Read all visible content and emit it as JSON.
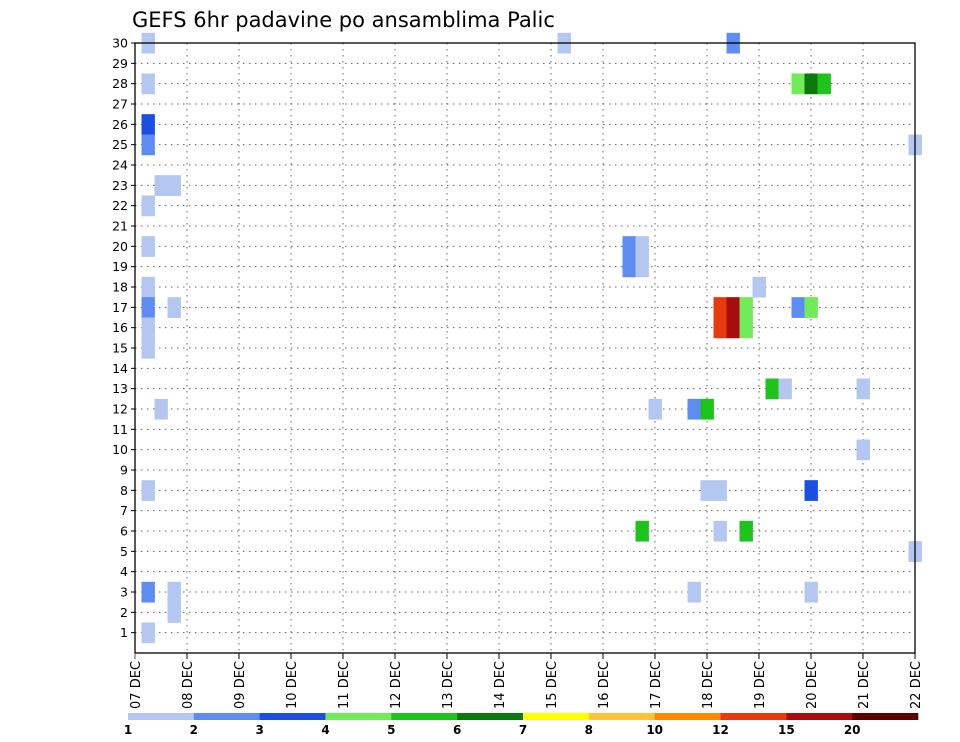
{
  "chart_data": {
    "type": "heatmap",
    "title": "GEFS 6hr padavine po ansamblima Palic",
    "x_labels": [
      "07 DEC",
      "08 DEC",
      "09 DEC",
      "10 DEC",
      "11 DEC",
      "12 DEC",
      "13 DEC",
      "14 DEC",
      "15 DEC",
      "16 DEC",
      "17 DEC",
      "18 DEC",
      "19 DEC",
      "20 DEC",
      "21 DEC",
      "22 DEC"
    ],
    "y_labels": [
      "1",
      "2",
      "3",
      "4",
      "5",
      "6",
      "7",
      "8",
      "9",
      "10",
      "11",
      "12",
      "13",
      "14",
      "15",
      "16",
      "17",
      "18",
      "19",
      "20",
      "21",
      "22",
      "23",
      "24",
      "25",
      "26",
      "27",
      "28",
      "29",
      "30"
    ],
    "x_range_days": [
      0,
      15
    ],
    "y_range": [
      0,
      30
    ],
    "colorbar": {
      "labels": [
        "1",
        "2",
        "3",
        "4",
        "5",
        "6",
        "7",
        "8",
        "10",
        "12",
        "15",
        "20"
      ],
      "colors": [
        "#b4c7f0",
        "#5f8cf0",
        "#1c4fe0",
        "#73ea5a",
        "#1ec31e",
        "#0a780a",
        "#ffff00",
        "#ffc23a",
        "#ff8a00",
        "#e83a10",
        "#a80d0d",
        "#5c0000"
      ]
    },
    "cells": [
      {
        "day": 0.25,
        "member": 30,
        "color": "#b4c7f0"
      },
      {
        "day": 8.25,
        "member": 30,
        "color": "#b4c7f0"
      },
      {
        "day": 11.5,
        "member": 30,
        "color": "#5f8cf0"
      },
      {
        "day": 0.25,
        "member": 28,
        "color": "#b4c7f0"
      },
      {
        "day": 12.75,
        "member": 28,
        "color": "#73ea5a"
      },
      {
        "day": 13.0,
        "member": 28,
        "color": "#0a780a"
      },
      {
        "day": 13.25,
        "member": 28,
        "color": "#1ec31e"
      },
      {
        "day": 0.25,
        "member": 26,
        "color": "#1c4fe0"
      },
      {
        "day": 0.25,
        "member": 25,
        "color": "#5f8cf0"
      },
      {
        "day": 15.0,
        "member": 25,
        "color": "#b4c7f0"
      },
      {
        "day": 0.5,
        "member": 23,
        "color": "#b4c7f0"
      },
      {
        "day": 0.75,
        "member": 23,
        "color": "#b4c7f0"
      },
      {
        "day": 0.25,
        "member": 22,
        "color": "#b4c7f0"
      },
      {
        "day": 0.25,
        "member": 20,
        "color": "#b4c7f0"
      },
      {
        "day": 9.5,
        "member": 20,
        "color": "#5f8cf0"
      },
      {
        "day": 9.75,
        "member": 20,
        "color": "#b4c7f0"
      },
      {
        "day": 9.5,
        "member": 19,
        "color": "#5f8cf0"
      },
      {
        "day": 9.75,
        "member": 19,
        "color": "#b4c7f0"
      },
      {
        "day": 0.25,
        "member": 18,
        "color": "#b4c7f0"
      },
      {
        "day": 12.0,
        "member": 18,
        "color": "#b4c7f0"
      },
      {
        "day": 0.25,
        "member": 17,
        "color": "#5f8cf0"
      },
      {
        "day": 0.75,
        "member": 17,
        "color": "#b4c7f0"
      },
      {
        "day": 11.25,
        "member": 17,
        "color": "#e83a10"
      },
      {
        "day": 11.5,
        "member": 17,
        "color": "#a80d0d"
      },
      {
        "day": 11.75,
        "member": 17,
        "color": "#73ea5a"
      },
      {
        "day": 12.75,
        "member": 17,
        "color": "#5f8cf0"
      },
      {
        "day": 13.0,
        "member": 17,
        "color": "#73ea5a"
      },
      {
        "day": 0.25,
        "member": 16,
        "color": "#b4c7f0"
      },
      {
        "day": 11.25,
        "member": 16,
        "color": "#e83a10"
      },
      {
        "day": 11.5,
        "member": 16,
        "color": "#a80d0d"
      },
      {
        "day": 11.75,
        "member": 16,
        "color": "#73ea5a"
      },
      {
        "day": 0.25,
        "member": 15,
        "color": "#b4c7f0"
      },
      {
        "day": 12.25,
        "member": 13,
        "color": "#1ec31e"
      },
      {
        "day": 12.5,
        "member": 13,
        "color": "#b4c7f0"
      },
      {
        "day": 14.0,
        "member": 13,
        "color": "#b4c7f0"
      },
      {
        "day": 0.5,
        "member": 12,
        "color": "#b4c7f0"
      },
      {
        "day": 10.0,
        "member": 12,
        "color": "#b4c7f0"
      },
      {
        "day": 10.75,
        "member": 12,
        "color": "#5f8cf0"
      },
      {
        "day": 11.0,
        "member": 12,
        "color": "#1ec31e"
      },
      {
        "day": 14.0,
        "member": 10,
        "color": "#b4c7f0"
      },
      {
        "day": 0.25,
        "member": 8,
        "color": "#b4c7f0"
      },
      {
        "day": 11.0,
        "member": 8,
        "color": "#b4c7f0"
      },
      {
        "day": 11.25,
        "member": 8,
        "color": "#b4c7f0"
      },
      {
        "day": 13.0,
        "member": 8,
        "color": "#1c4fe0"
      },
      {
        "day": 9.75,
        "member": 6,
        "color": "#1ec31e"
      },
      {
        "day": 11.25,
        "member": 6,
        "color": "#b4c7f0"
      },
      {
        "day": 11.75,
        "member": 6,
        "color": "#1ec31e"
      },
      {
        "day": 15.0,
        "member": 5,
        "color": "#b4c7f0"
      },
      {
        "day": 0.25,
        "member": 3,
        "color": "#5f8cf0"
      },
      {
        "day": 0.75,
        "member": 3,
        "color": "#b4c7f0"
      },
      {
        "day": 10.75,
        "member": 3,
        "color": "#b4c7f0"
      },
      {
        "day": 13.0,
        "member": 3,
        "color": "#b4c7f0"
      },
      {
        "day": 0.75,
        "member": 2,
        "color": "#b4c7f0"
      },
      {
        "day": 0.25,
        "member": 1,
        "color": "#b4c7f0"
      }
    ]
  }
}
